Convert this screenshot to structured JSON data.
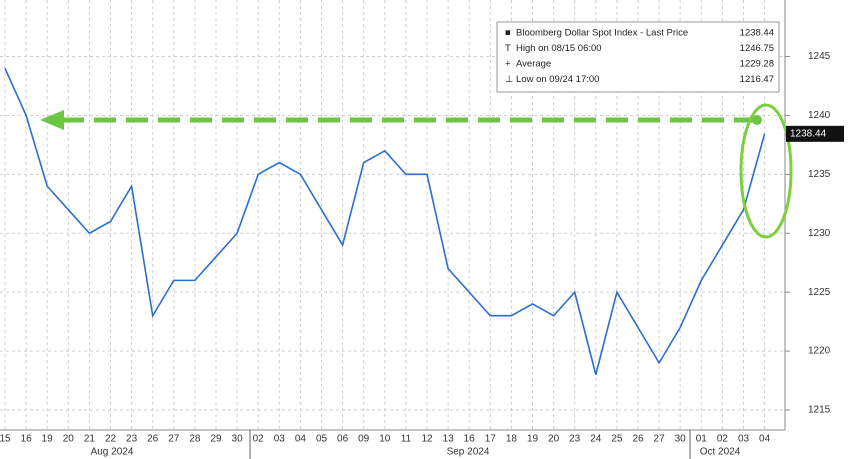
{
  "chart_data": {
    "type": "line",
    "categories": [
      "15",
      "16",
      "19",
      "20",
      "21",
      "22",
      "23",
      "26",
      "27",
      "28",
      "29",
      "30",
      "02",
      "03",
      "04",
      "05",
      "06",
      "09",
      "10",
      "11",
      "12",
      "13",
      "16",
      "17",
      "18",
      "19",
      "20",
      "23",
      "24",
      "25",
      "26",
      "27",
      "30",
      "01",
      "02",
      "03",
      "04"
    ],
    "x_group_labels": [
      "Aug 2024",
      "Sep 2024",
      "Oct 2024"
    ],
    "series": [
      {
        "name": "Bloomberg Dollar Spot Index - Last Price",
        "color": "#2a6fcf",
        "values": [
          1244,
          1240,
          1234,
          1232,
          1230,
          1231,
          1234,
          1223,
          1226,
          1226,
          1228,
          1230,
          1235,
          1236,
          1235,
          1232,
          1229,
          1236,
          1237,
          1235,
          1235,
          1227,
          1225,
          1223,
          1223,
          1224,
          1223,
          1225,
          1218,
          1225,
          1222,
          1219,
          1222,
          1226,
          1229,
          1232,
          1238.44
        ]
      }
    ],
    "legend": [
      {
        "label": "Bloomberg Dollar Spot Index - Last Price",
        "value": 1238.44
      },
      {
        "label": "High on 08/15 06:00",
        "value": 1246.75
      },
      {
        "label": "Average",
        "value": 1229.28
      },
      {
        "label": "Low on 09/24 17:00",
        "value": 1216.47
      }
    ],
    "last_price": 1238.44,
    "ylim": [
      1213.3,
      1249.8
    ],
    "yticks": [
      1215,
      1220,
      1225,
      1230,
      1235,
      1240,
      1245
    ],
    "grid": true
  }
}
